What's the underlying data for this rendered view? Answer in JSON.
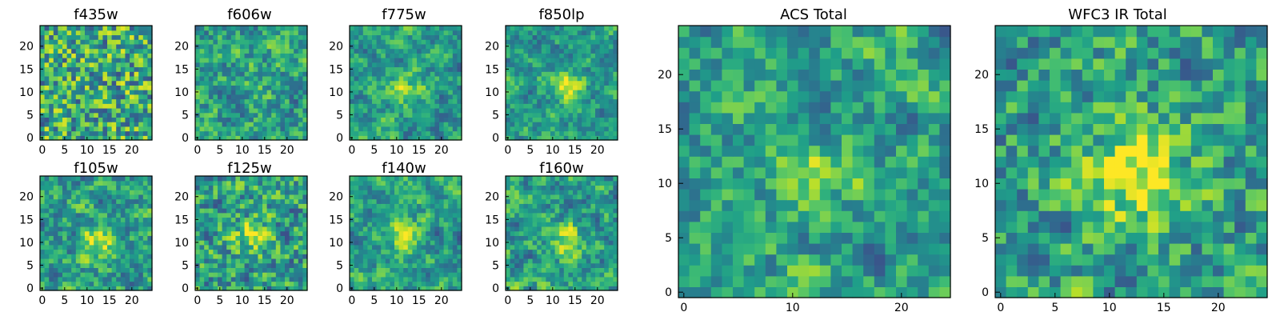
{
  "chart_data": [
    {
      "type": "heatmap",
      "title": "f435w",
      "xticks": [
        0,
        5,
        10,
        15,
        20
      ],
      "yticks": [
        0,
        5,
        10,
        15,
        20
      ],
      "xlim": [
        -0.5,
        24.5
      ],
      "ylim": [
        -0.5,
        24.5
      ],
      "grid_size": [
        25,
        25
      ],
      "peak": null,
      "colormap": "viridis"
    },
    {
      "type": "heatmap",
      "title": "f606w",
      "xticks": [
        0,
        5,
        10,
        15,
        20
      ],
      "yticks": [
        0,
        5,
        10,
        15,
        20
      ],
      "xlim": [
        -0.5,
        24.5
      ],
      "ylim": [
        -0.5,
        24.5
      ],
      "grid_size": [
        25,
        25
      ],
      "peak": [
        12,
        11
      ],
      "colormap": "viridis"
    },
    {
      "type": "heatmap",
      "title": "f775w",
      "xticks": [
        0,
        5,
        10,
        15,
        20
      ],
      "yticks": [
        0,
        5,
        10,
        15,
        20
      ],
      "xlim": [
        -0.5,
        24.5
      ],
      "ylim": [
        -0.5,
        24.5
      ],
      "grid_size": [
        25,
        25
      ],
      "peak": [
        12,
        11
      ],
      "colormap": "viridis"
    },
    {
      "type": "heatmap",
      "title": "f850lp",
      "xticks": [
        0,
        5,
        10,
        15,
        20
      ],
      "yticks": [
        0,
        5,
        10,
        15,
        20
      ],
      "xlim": [
        -0.5,
        24.5
      ],
      "ylim": [
        -0.5,
        24.5
      ],
      "grid_size": [
        25,
        25
      ],
      "peak": [
        13,
        11
      ],
      "colormap": "viridis"
    },
    {
      "type": "heatmap",
      "title": "f105w",
      "xticks": [
        0,
        5,
        10,
        15,
        20
      ],
      "yticks": [
        0,
        5,
        10,
        15,
        20
      ],
      "xlim": [
        -0.5,
        24.5
      ],
      "ylim": [
        -0.5,
        24.5
      ],
      "grid_size": [
        25,
        25
      ],
      "peak": [
        12,
        10
      ],
      "colormap": "viridis"
    },
    {
      "type": "heatmap",
      "title": "f125w",
      "xticks": [
        0,
        5,
        10,
        15,
        20
      ],
      "yticks": [
        0,
        5,
        10,
        15,
        20
      ],
      "xlim": [
        -0.5,
        24.5
      ],
      "ylim": [
        -0.5,
        24.5
      ],
      "grid_size": [
        25,
        25
      ],
      "peak": [
        12,
        11
      ],
      "colormap": "viridis"
    },
    {
      "type": "heatmap",
      "title": "f140w",
      "xticks": [
        0,
        5,
        10,
        15,
        20
      ],
      "yticks": [
        0,
        5,
        10,
        15,
        20
      ],
      "xlim": [
        -0.5,
        24.5
      ],
      "ylim": [
        -0.5,
        24.5
      ],
      "grid_size": [
        25,
        25
      ],
      "peak": [
        12,
        11
      ],
      "colormap": "viridis"
    },
    {
      "type": "heatmap",
      "title": "f160w",
      "xticks": [
        0,
        5,
        10,
        15,
        20
      ],
      "yticks": [
        0,
        5,
        10,
        15,
        20
      ],
      "xlim": [
        -0.5,
        24.5
      ],
      "ylim": [
        -0.5,
        24.5
      ],
      "grid_size": [
        25,
        25
      ],
      "peak": [
        13,
        11
      ],
      "colormap": "viridis"
    },
    {
      "type": "heatmap",
      "title": "ACS Total",
      "xticks": [
        0,
        10,
        20
      ],
      "yticks": [
        0,
        5,
        10,
        15,
        20
      ],
      "xlim": [
        -0.5,
        24.5
      ],
      "ylim": [
        -0.5,
        24.5
      ],
      "grid_size": [
        25,
        25
      ],
      "peak": [
        12,
        11
      ],
      "colormap": "viridis"
    },
    {
      "type": "heatmap",
      "title": "WFC3 IR Total",
      "xticks": [
        0,
        5,
        10,
        15,
        20
      ],
      "yticks": [
        0,
        5,
        10,
        15,
        20
      ],
      "xlim": [
        -0.5,
        24.5
      ],
      "ylim": [
        -0.5,
        24.5
      ],
      "grid_size": [
        25,
        25
      ],
      "peak": [
        12,
        11
      ],
      "colormap": "viridis"
    }
  ]
}
